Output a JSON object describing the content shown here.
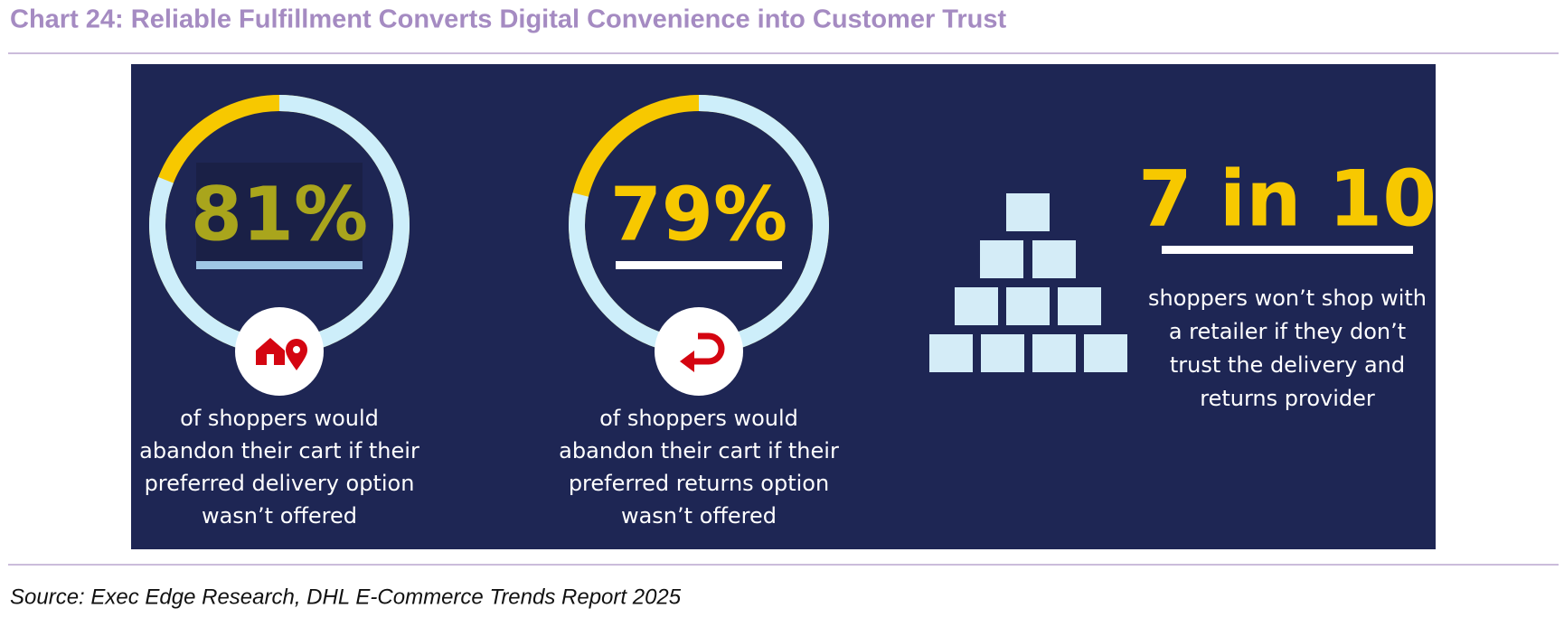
{
  "header": {
    "title": "Chart 24: Reliable Fulfillment Converts Digital Convenience into Customer Trust"
  },
  "panels": [
    {
      "value": 81,
      "label": "81%",
      "text": [
        "of shoppers would",
        "abandon their cart if their",
        "preferred delivery option",
        "wasn’t offered"
      ]
    },
    {
      "value": 79,
      "label": "79%",
      "text": [
        "of shoppers would",
        "abandon their cart if their",
        "preferred returns option",
        "wasn’t offered"
      ]
    }
  ],
  "highlight": {
    "label": "7 in 10",
    "text": [
      "shoppers won’t shop with",
      "a retailer if they don’t",
      "trust the delivery and",
      "returns provider"
    ]
  },
  "source": "Source: Exec Edge Research, DHL E-Commerce Trends Report 2025"
}
